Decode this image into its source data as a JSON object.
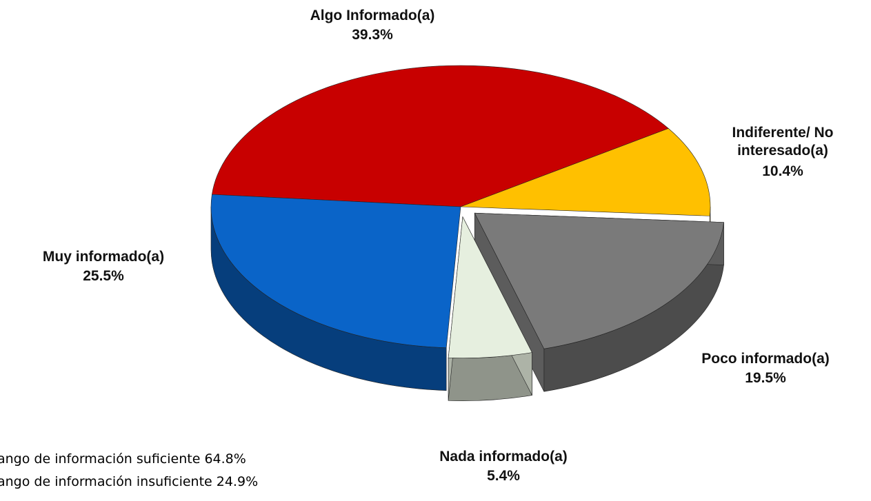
{
  "chart_data": {
    "type": "pie",
    "categories": [
      "Algo Informado(a)",
      "Indiferente/ No interesado(a)",
      "Poco informado(a)",
      "Nada informado(a)",
      "Muy informado(a)"
    ],
    "values": [
      39.3,
      10.4,
      19.5,
      5.4,
      25.5
    ],
    "value_labels": [
      "39.3%",
      "10.4%",
      "19.5%",
      "5.4%",
      "25.5%"
    ],
    "colors": [
      "#c80000",
      "#ffc000",
      "#7a7a7a",
      "#e6efdf",
      "#0a64c8"
    ],
    "exploded": [
      false,
      false,
      true,
      true,
      false
    ],
    "notes": [
      "ango de información suficiente 64.8%",
      "ango de información insuficiente 24.9%"
    ]
  }
}
